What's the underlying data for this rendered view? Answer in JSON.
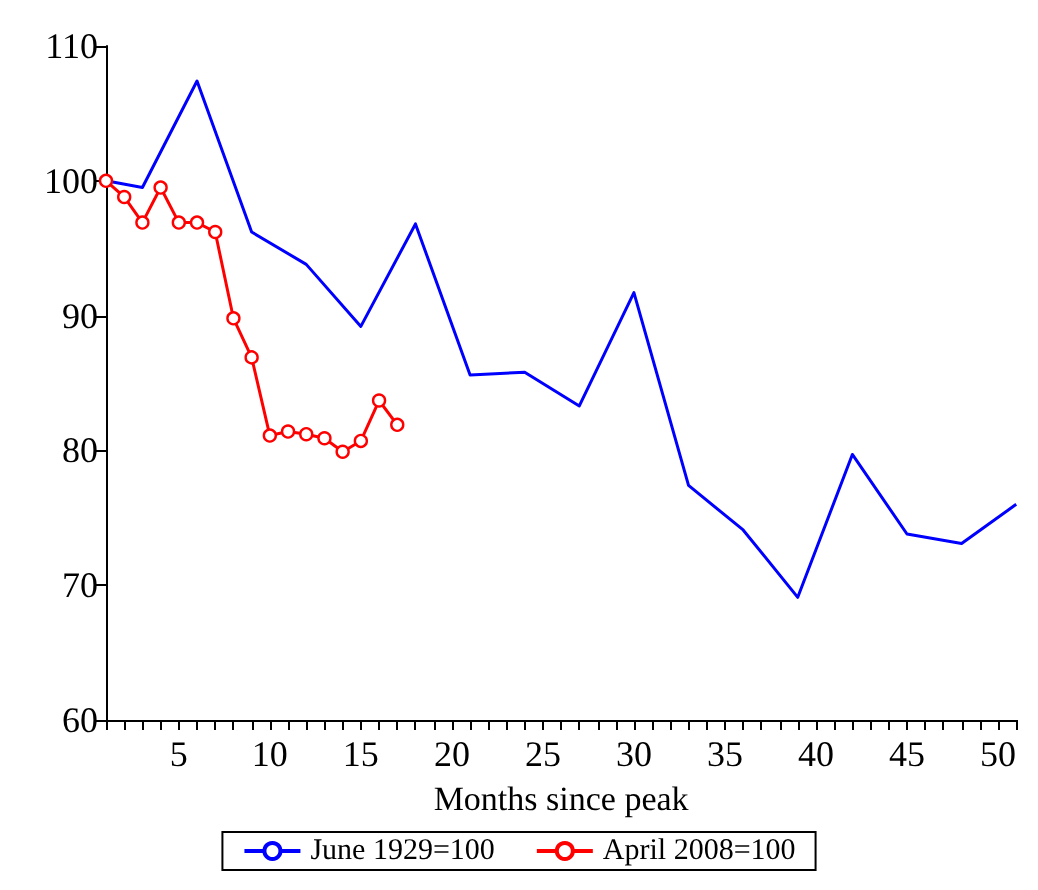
{
  "chart_data": {
    "type": "line",
    "xlabel": "Months since peak",
    "x": [
      1,
      3,
      6,
      9,
      12,
      15,
      18,
      21,
      24,
      27,
      30,
      33,
      36,
      39,
      42,
      45,
      48,
      51
    ],
    "series": [
      {
        "name": "June 1929=100",
        "color": "#0000ff",
        "marker": "none",
        "values": [
          100,
          99.5,
          107.4,
          96.2,
          93.8,
          89.2,
          96.8,
          85.6,
          85.8,
          83.3,
          91.7,
          77.4,
          74.1,
          69.1,
          79.7,
          73.8,
          73.1,
          76.0
        ]
      },
      {
        "name": "April 2008=100",
        "color": "#ff0000",
        "marker": "circle",
        "x": [
          1,
          2,
          3,
          4,
          5,
          6,
          7,
          8,
          9,
          10,
          11,
          12,
          13,
          14,
          15,
          16,
          17
        ],
        "values": [
          100,
          98.8,
          96.9,
          99.5,
          96.9,
          96.9,
          96.2,
          89.8,
          86.9,
          81.1,
          81.4,
          81.2,
          80.9,
          79.9,
          80.7,
          83.7,
          81.9
        ]
      }
    ],
    "xlim": [
      1,
      51
    ],
    "xticks": [
      {
        "value": 1,
        "label": null
      },
      {
        "value": 2,
        "label": null
      },
      {
        "value": 3,
        "label": null
      },
      {
        "value": 4,
        "label": null
      },
      5,
      {
        "value": 6,
        "label": null
      },
      {
        "value": 7,
        "label": null
      },
      {
        "value": 8,
        "label": null
      },
      {
        "value": 9,
        "label": null
      },
      10,
      {
        "value": 11,
        "label": null
      },
      {
        "value": 12,
        "label": null
      },
      {
        "value": 13,
        "label": null
      },
      {
        "value": 14,
        "label": null
      },
      15,
      {
        "value": 16,
        "label": null
      },
      {
        "value": 17,
        "label": null
      },
      {
        "value": 18,
        "label": null
      },
      {
        "value": 19,
        "label": null
      },
      20,
      {
        "value": 21,
        "label": null
      },
      {
        "value": 22,
        "label": null
      },
      {
        "value": 23,
        "label": null
      },
      {
        "value": 24,
        "label": null
      },
      25,
      {
        "value": 26,
        "label": null
      },
      {
        "value": 27,
        "label": null
      },
      {
        "value": 28,
        "label": null
      },
      {
        "value": 29,
        "label": null
      },
      30,
      {
        "value": 31,
        "label": null
      },
      {
        "value": 32,
        "label": null
      },
      {
        "value": 33,
        "label": null
      },
      {
        "value": 34,
        "label": null
      },
      35,
      {
        "value": 36,
        "label": null
      },
      {
        "value": 37,
        "label": null
      },
      {
        "value": 38,
        "label": null
      },
      {
        "value": 39,
        "label": null
      },
      40,
      {
        "value": 41,
        "label": null
      },
      {
        "value": 42,
        "label": null
      },
      {
        "value": 43,
        "label": null
      },
      {
        "value": 44,
        "label": null
      },
      45,
      {
        "value": 46,
        "label": null
      },
      {
        "value": 47,
        "label": null
      },
      {
        "value": 48,
        "label": null
      },
      {
        "value": 49,
        "label": null
      },
      50,
      {
        "value": 51,
        "label": null
      }
    ],
    "ylim": [
      60,
      110
    ],
    "yticks": [
      60,
      70,
      80,
      90,
      100,
      110
    ],
    "grid": false,
    "legend": "bottom",
    "line_style": "solid"
  }
}
